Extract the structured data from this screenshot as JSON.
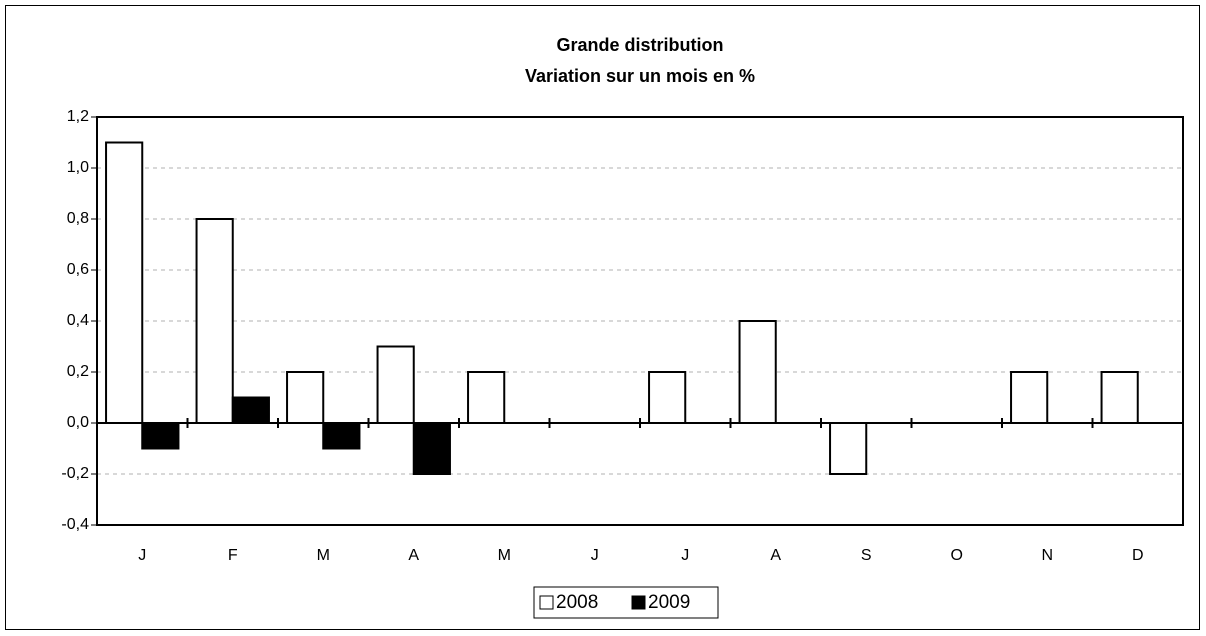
{
  "chart_data": {
    "type": "bar",
    "title": "Grande distribution",
    "subtitle": "Variation sur un mois en %",
    "categories": [
      "J",
      "F",
      "M",
      "A",
      "M",
      "J",
      "J",
      "A",
      "S",
      "O",
      "N",
      "D"
    ],
    "series": [
      {
        "name": "2008",
        "color": "#ffffff",
        "values": [
          1.1,
          0.8,
          0.2,
          0.3,
          0.2,
          0,
          0.2,
          0.4,
          -0.2,
          0,
          0.2,
          0.2
        ]
      },
      {
        "name": "2009",
        "color": "#000000",
        "values": [
          -0.1,
          0.1,
          -0.1,
          -0.2,
          null,
          null,
          null,
          null,
          null,
          null,
          null,
          null
        ]
      }
    ],
    "ylim": [
      -0.4,
      1.2
    ],
    "yticks": [
      {
        "value": -0.4,
        "label": "-0,4"
      },
      {
        "value": -0.2,
        "label": "-0,2"
      },
      {
        "value": 0,
        "label": "0,0"
      },
      {
        "value": 0.2,
        "label": "0,2"
      },
      {
        "value": 0.4,
        "label": "0,4"
      },
      {
        "value": 0.6,
        "label": "0,6"
      },
      {
        "value": 0.8,
        "label": "0,8"
      },
      {
        "value": 1.0,
        "label": "1,0"
      },
      {
        "value": 1.2,
        "label": "1,2"
      }
    ],
    "grid": true,
    "legend": "bottom"
  }
}
